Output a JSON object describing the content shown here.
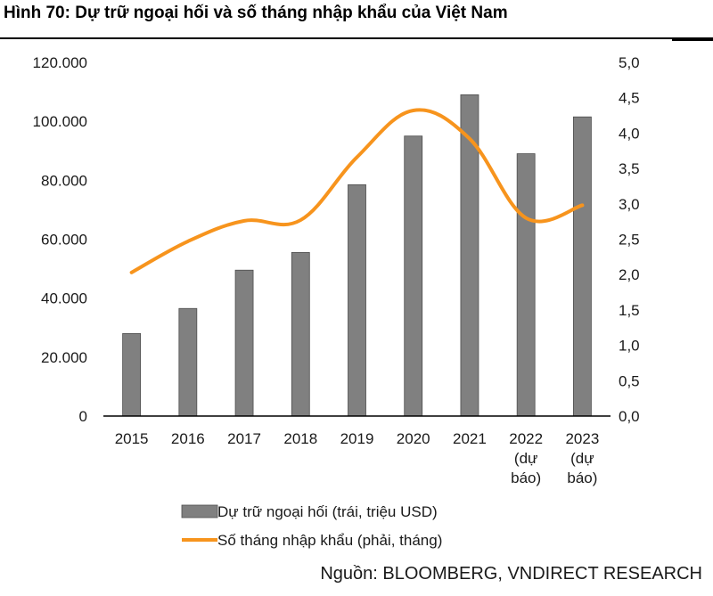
{
  "title": "Hình 70: Dự trữ ngoại hối và số tháng nhập khẩu của Việt Nam",
  "source": "Nguồn: BLOOMBERG, VNDIRECT RESEARCH",
  "chart_data": {
    "type": "bar+line",
    "categories": [
      [
        "2015"
      ],
      [
        "2016"
      ],
      [
        "2017"
      ],
      [
        "2018"
      ],
      [
        "2019"
      ],
      [
        "2020"
      ],
      [
        "2021"
      ],
      [
        "2022",
        "(dự",
        "báo)"
      ],
      [
        "2023",
        "(dự",
        "báo)"
      ]
    ],
    "series": [
      {
        "name": "Dự trữ ngoại hối (trái, triệu USD)",
        "type": "bar",
        "axis": "left",
        "color": "#808080",
        "values": [
          28000,
          36500,
          49500,
          55500,
          78500,
          95000,
          109000,
          89000,
          101500
        ]
      },
      {
        "name": "Số tháng nhập khẩu (phải, tháng)",
        "type": "line",
        "axis": "right",
        "color": "#F7941D",
        "values": [
          2.03,
          2.47,
          2.76,
          2.77,
          3.66,
          4.32,
          3.92,
          2.8,
          2.98
        ]
      }
    ],
    "y_left": {
      "min": 0,
      "max": 120000,
      "ticks": [
        0,
        20000,
        40000,
        60000,
        80000,
        100000,
        120000
      ],
      "tick_labels": [
        "0",
        "20.000",
        "40.000",
        "60.000",
        "80.000",
        "100.000",
        "120.000"
      ]
    },
    "y_right": {
      "min": 0,
      "max": 5,
      "ticks": [
        0,
        0.5,
        1,
        1.5,
        2,
        2.5,
        3,
        3.5,
        4,
        4.5,
        5
      ],
      "tick_labels": [
        "0,0",
        "0,5",
        "1,0",
        "1,5",
        "2,0",
        "2,5",
        "3,0",
        "3,5",
        "4,0",
        "4,5",
        "5,0"
      ]
    },
    "grid": false,
    "legend_position": "bottom-left"
  }
}
